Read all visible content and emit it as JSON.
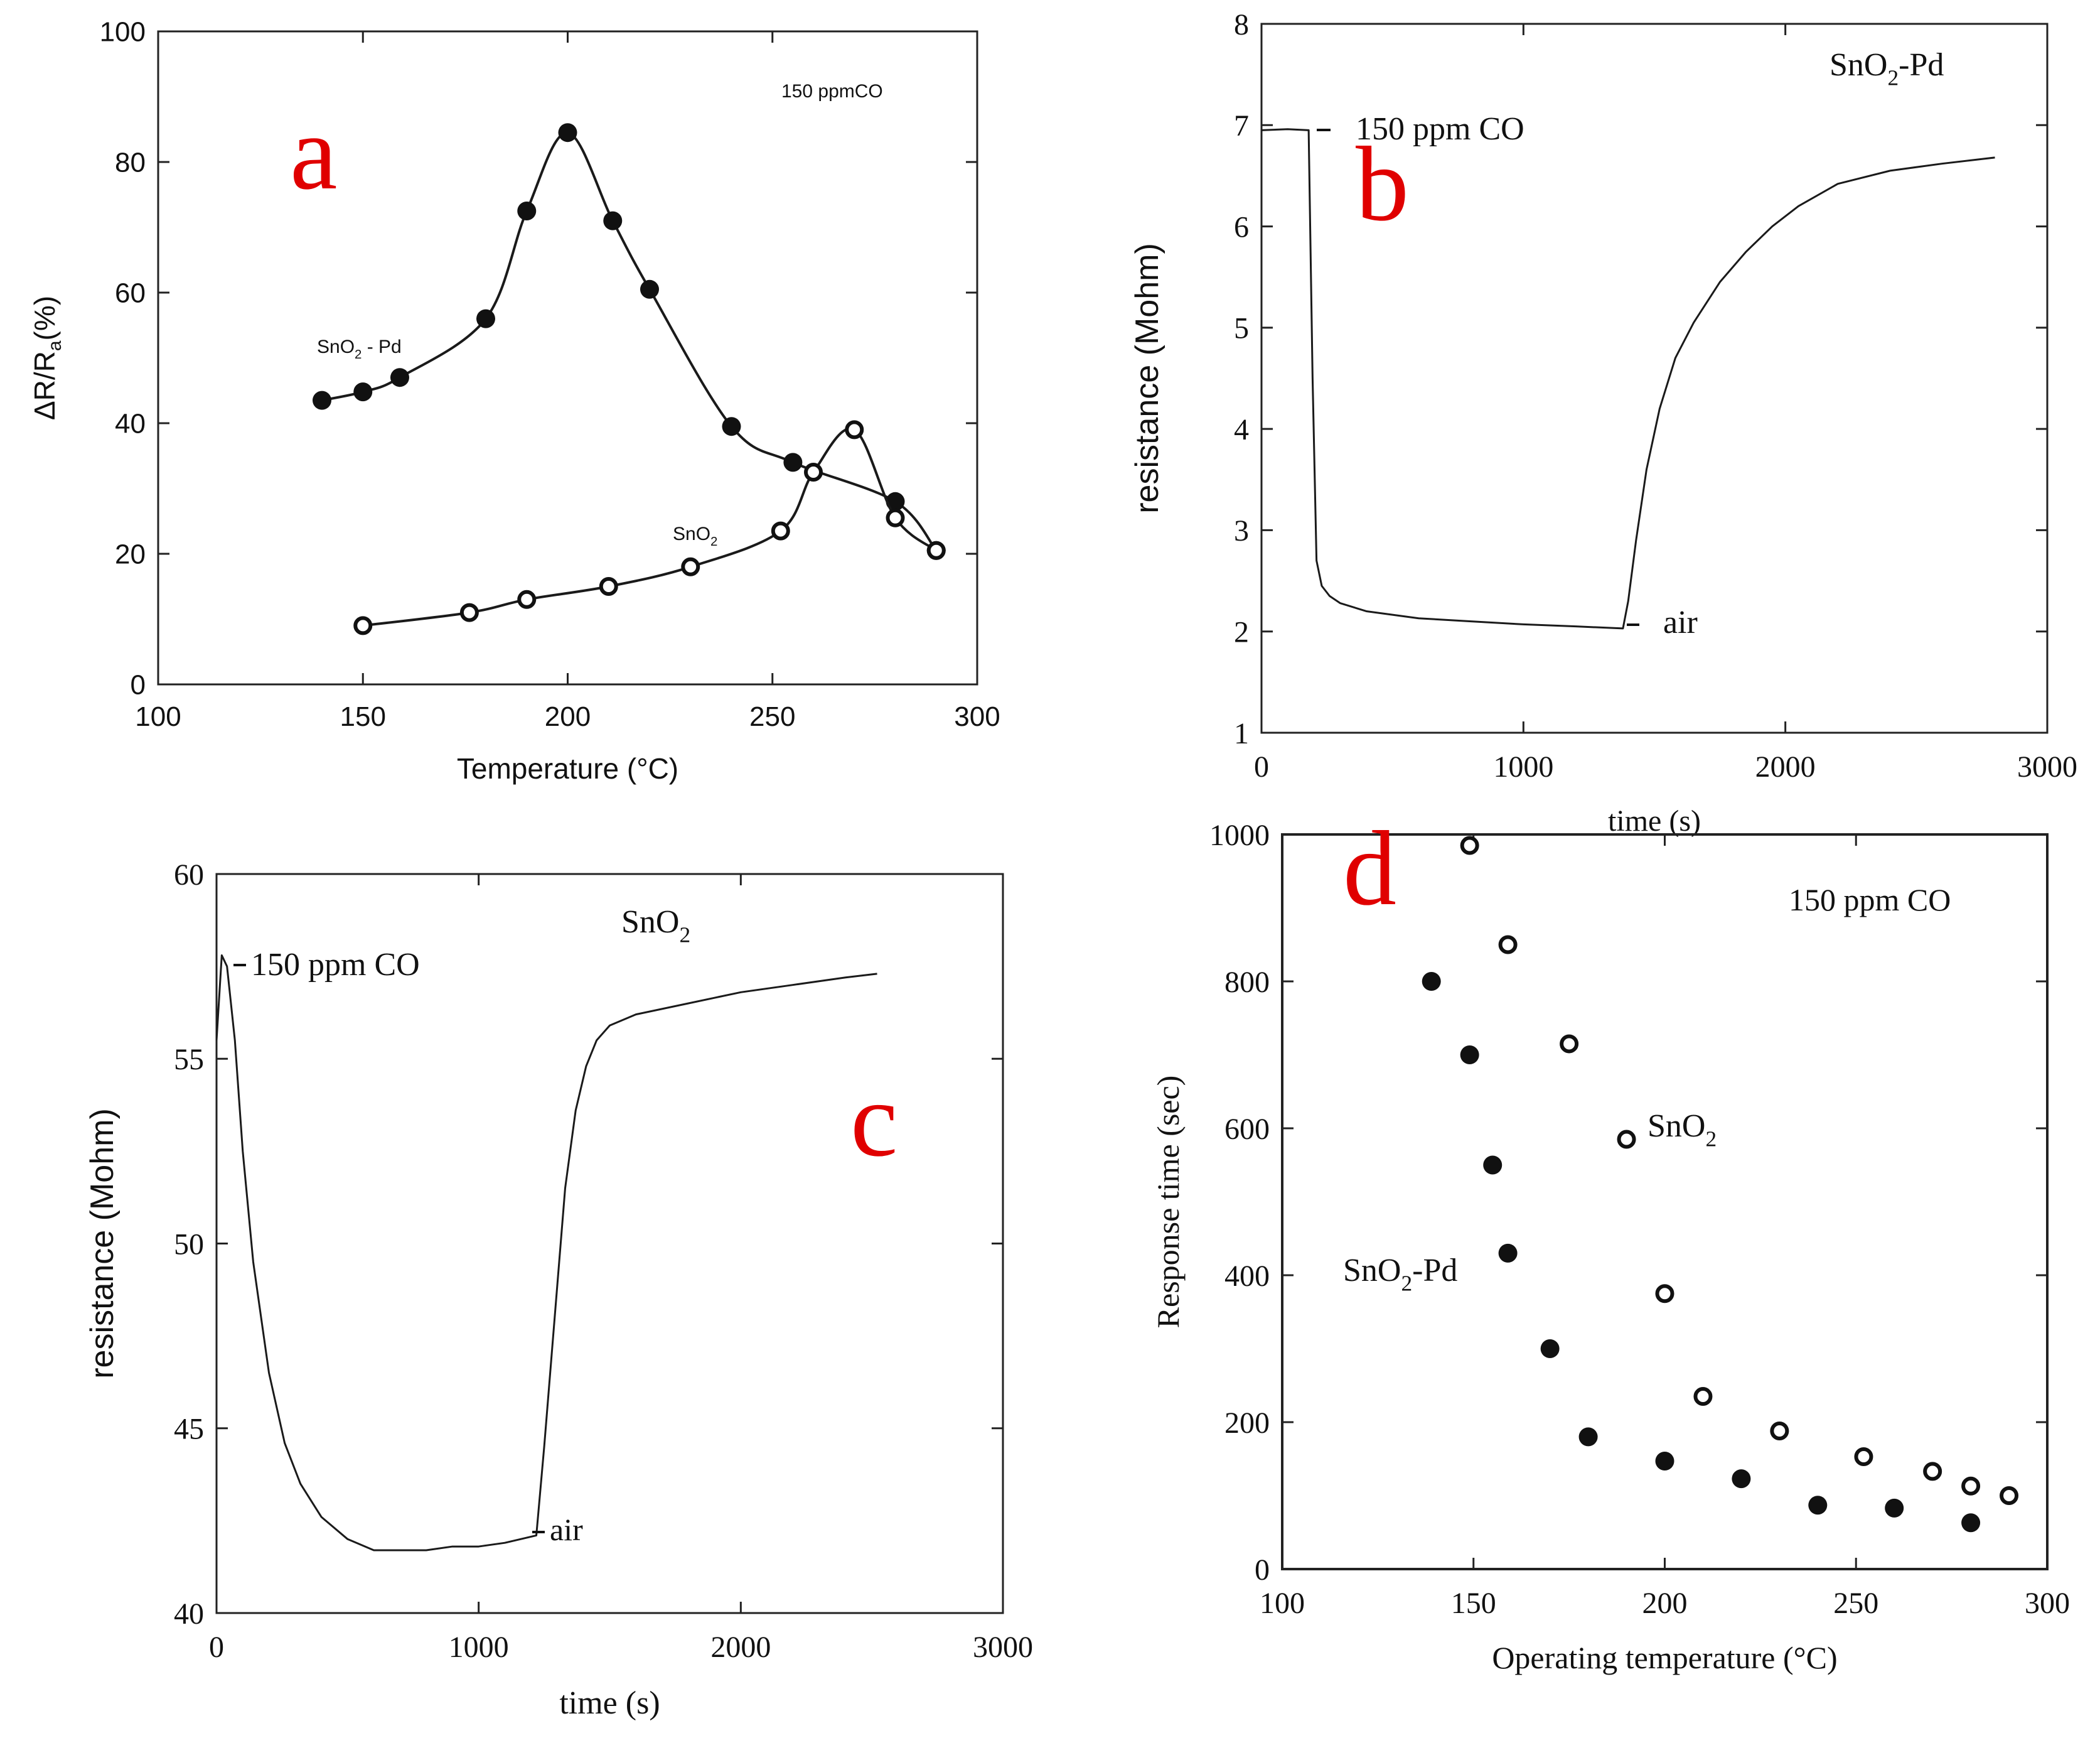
{
  "chart_data": [
    {
      "panel": "a",
      "type": "line",
      "title": "",
      "xlabel": "Temperature (°C)",
      "ylabel": "ΔR/R",
      "ylabel_sub": "a",
      "ylabel_tail": "(%)",
      "xlim": [
        100,
        300
      ],
      "ylim": [
        0,
        100
      ],
      "xticks": [
        100,
        150,
        200,
        250,
        300
      ],
      "yticks": [
        0,
        20,
        40,
        60,
        80,
        100
      ],
      "annotation": "150 ppmCO",
      "series": [
        {
          "name": "SnO2-Pd",
          "label_main": "SnO",
          "label_sub": "2",
          "label_tail": " - Pd",
          "marker": "filled",
          "x": [
            140,
            150,
            159,
            180,
            190,
            200,
            211,
            220,
            240,
            255,
            280,
            290
          ],
          "y": [
            43.5,
            44.8,
            47,
            56,
            72.5,
            84.5,
            71,
            60.5,
            39.5,
            34,
            28,
            20.5
          ]
        },
        {
          "name": "SnO2",
          "label_main": "SnO",
          "label_sub": "2",
          "label_tail": "",
          "marker": "open",
          "x": [
            150,
            176,
            190,
            210,
            230,
            252,
            260,
            270,
            280,
            290
          ],
          "y": [
            9,
            11,
            13,
            15,
            18,
            23.5,
            32.5,
            39,
            25.5,
            20.5
          ]
        }
      ]
    },
    {
      "panel": "b",
      "type": "line",
      "title": "",
      "xlabel": "time (s)",
      "ylabel": "resistance (Mohm)",
      "xlim": [
        0,
        3000
      ],
      "ylim": [
        1,
        8
      ],
      "xticks": [
        0,
        1000,
        2000,
        3000
      ],
      "yticks": [
        1,
        2,
        3,
        4,
        5,
        6,
        7,
        8
      ],
      "label_main": "SnO",
      "label_sub": "2",
      "label_tail": "-Pd",
      "annotation_co": "150 ppm CO",
      "annotation_air": "air",
      "series": [
        {
          "name": "SnO2-Pd",
          "x": [
            0,
            100,
            180,
            195,
            210,
            230,
            260,
            300,
            400,
            600,
            800,
            1000,
            1200,
            1380,
            1400,
            1430,
            1470,
            1520,
            1580,
            1650,
            1750,
            1850,
            1950,
            2050,
            2200,
            2400,
            2600,
            2800
          ],
          "y": [
            6.95,
            6.96,
            6.95,
            4.5,
            2.7,
            2.45,
            2.35,
            2.28,
            2.2,
            2.13,
            2.1,
            2.07,
            2.05,
            2.03,
            2.3,
            2.9,
            3.6,
            4.2,
            4.7,
            5.05,
            5.45,
            5.75,
            6.0,
            6.2,
            6.42,
            6.55,
            6.62,
            6.68
          ]
        }
      ]
    },
    {
      "panel": "c",
      "type": "line",
      "title": "",
      "xlabel": "time (s)",
      "ylabel": "resistance (Mohm)",
      "xlim": [
        0,
        3000
      ],
      "ylim": [
        40,
        60
      ],
      "xticks": [
        0,
        1000,
        2000,
        3000
      ],
      "yticks": [
        40,
        45,
        50,
        55,
        60
      ],
      "label_main": "SnO",
      "label_sub": "2",
      "label_tail": "",
      "annotation_co": "150 ppm CO",
      "annotation_air": "air",
      "series": [
        {
          "name": "SnO2",
          "x": [
            0,
            20,
            40,
            70,
            100,
            140,
            200,
            260,
            320,
            400,
            500,
            600,
            700,
            800,
            900,
            1000,
            1100,
            1220,
            1250,
            1290,
            1330,
            1370,
            1410,
            1450,
            1500,
            1600,
            1800,
            2000,
            2200,
            2400,
            2520
          ],
          "y": [
            55.5,
            57.8,
            57.5,
            55.5,
            52.5,
            49.5,
            46.5,
            44.6,
            43.5,
            42.6,
            42.0,
            41.7,
            41.7,
            41.7,
            41.8,
            41.8,
            41.9,
            42.1,
            44.5,
            48.0,
            51.5,
            53.6,
            54.8,
            55.5,
            55.9,
            56.2,
            56.5,
            56.8,
            57.0,
            57.2,
            57.3
          ]
        }
      ]
    },
    {
      "panel": "d",
      "type": "scatter",
      "title": "",
      "xlabel": "Operating temperature (°C)",
      "ylabel": "Response time (sec)",
      "xlim": [
        100,
        300
      ],
      "ylim": [
        0,
        1000
      ],
      "xticks": [
        100,
        150,
        200,
        250,
        300
      ],
      "yticks": [
        0,
        200,
        400,
        600,
        800,
        1000
      ],
      "annotation": "150 ppm CO",
      "series": [
        {
          "name": "SnO2",
          "label_main": "SnO",
          "label_sub": "2",
          "label_tail": "",
          "marker": "open",
          "x": [
            149,
            159,
            175,
            190,
            200,
            210,
            230,
            252,
            270,
            280,
            290
          ],
          "y": [
            985,
            850,
            715,
            585,
            375,
            235,
            188,
            153,
            133,
            113,
            100
          ]
        },
        {
          "name": "SnO2-Pd",
          "label_main": "SnO",
          "label_sub": "2",
          "label_tail": "-Pd",
          "marker": "filled",
          "x": [
            139,
            149,
            155,
            159,
            170,
            180,
            200,
            220,
            240,
            260,
            280
          ],
          "y": [
            800,
            700,
            550,
            430,
            300,
            180,
            147,
            123,
            87,
            83,
            63
          ]
        }
      ]
    }
  ],
  "panel_letters": [
    "a",
    "b",
    "c",
    "d"
  ]
}
